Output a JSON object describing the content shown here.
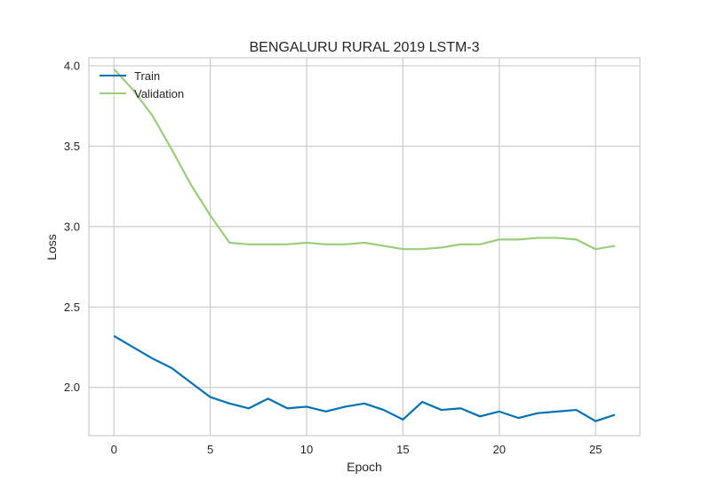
{
  "chart_data": {
    "type": "line",
    "title": "BENGALURU RURAL 2019 LSTM-3",
    "xlabel": "Epoch",
    "ylabel": "Loss",
    "xlim": [
      -1.3,
      27.3
    ],
    "ylim": [
      1.7,
      4.05
    ],
    "xticks": [
      0,
      5,
      10,
      15,
      20,
      25
    ],
    "yticks": [
      2.0,
      2.5,
      3.0,
      3.5,
      4.0
    ],
    "grid": true,
    "legend_position": "top-left",
    "x": [
      0,
      1,
      2,
      3,
      4,
      5,
      6,
      7,
      8,
      9,
      10,
      11,
      12,
      13,
      14,
      15,
      16,
      17,
      18,
      19,
      20,
      21,
      22,
      23,
      24,
      25,
      26
    ],
    "series": [
      {
        "name": "Train",
        "color": "#0072B2",
        "values": [
          2.32,
          2.25,
          2.18,
          2.12,
          2.03,
          1.94,
          1.9,
          1.87,
          1.93,
          1.87,
          1.88,
          1.85,
          1.88,
          1.9,
          1.86,
          1.8,
          1.91,
          1.86,
          1.87,
          1.82,
          1.85,
          1.81,
          1.84,
          1.85,
          1.86,
          1.79,
          1.83
        ]
      },
      {
        "name": "Validation",
        "color": "#9ACD7C",
        "values": [
          3.98,
          3.85,
          3.69,
          3.48,
          3.26,
          3.07,
          2.9,
          2.89,
          2.89,
          2.89,
          2.9,
          2.89,
          2.89,
          2.9,
          2.88,
          2.86,
          2.86,
          2.87,
          2.89,
          2.89,
          2.92,
          2.92,
          2.93,
          2.93,
          2.92,
          2.86,
          2.88
        ]
      }
    ]
  }
}
